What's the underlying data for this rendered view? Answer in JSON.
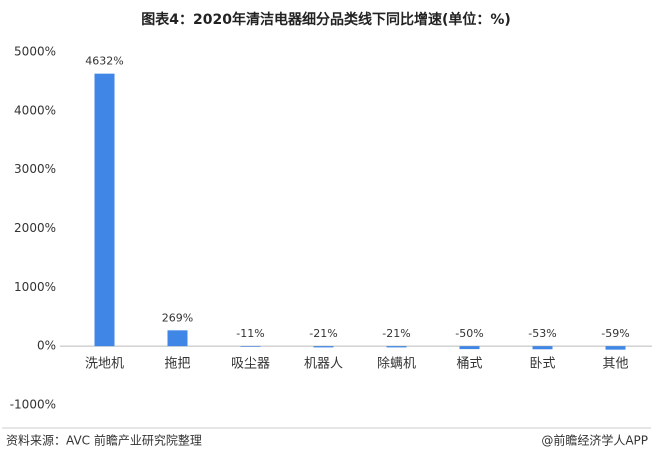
{
  "chart_data": {
    "type": "bar",
    "title": "图表4：2020年清洁电器细分品类线下同比增速(单位：%)",
    "categories": [
      "洗地机",
      "拖把",
      "吸尘器",
      "机器人",
      "除螨机",
      "桶式",
      "卧式",
      "其他"
    ],
    "values": [
      4632,
      269,
      -11,
      -21,
      -21,
      -50,
      -53,
      -59
    ],
    "value_labels": [
      "4632%",
      "269%",
      "-11%",
      "-21%",
      "-21%",
      "-50%",
      "-53%",
      "-59%"
    ],
    "color": "#3f86e6",
    "ylim": [
      -1000,
      5000
    ],
    "yticks": [
      {
        "value": -1000,
        "label": "-1000%"
      },
      {
        "value": 0,
        "label": "0%"
      },
      {
        "value": 1000,
        "label": "1000%"
      },
      {
        "value": 2000,
        "label": "2000%"
      },
      {
        "value": 3000,
        "label": "3000%"
      },
      {
        "value": 4000,
        "label": "4000%"
      },
      {
        "value": 5000,
        "label": "5000%"
      }
    ],
    "grid": false,
    "source": "资料来源：AVC 前瞻产业研究院整理",
    "footer": "@前瞻经济学人APP"
  }
}
